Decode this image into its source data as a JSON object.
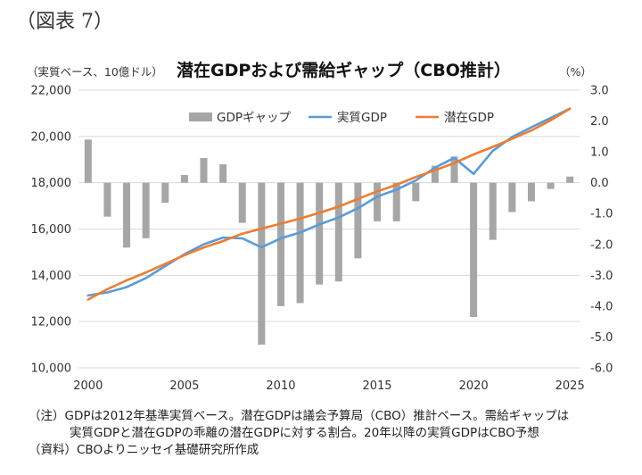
{
  "figure_label": "（図表 7）",
  "chart_data": {
    "type": "bar+line",
    "title": "潜在GDPおよび需給ギャップ（CBO推計）",
    "left_axis_label": "（実質ベース、10億ドル）",
    "right_axis_label": "（%）",
    "left_ylim": [
      10000,
      22000
    ],
    "right_ylim": [
      -6,
      3
    ],
    "left_ticks": [
      "22,000",
      "20,000",
      "18,000",
      "16,000",
      "14,000",
      "12,000",
      "10,000"
    ],
    "right_ticks": [
      "3.0",
      "2.0",
      "1.0",
      "0.0",
      "-1.0",
      "-2.0",
      "-3.0",
      "-4.0",
      "-5.0",
      "-6.0"
    ],
    "x_ticks": [
      "2000",
      "2005",
      "2010",
      "2015",
      "2020",
      "2025"
    ],
    "x": [
      2000,
      2001,
      2002,
      2003,
      2004,
      2005,
      2006,
      2007,
      2008,
      2009,
      2010,
      2011,
      2012,
      2013,
      2014,
      2015,
      2016,
      2017,
      2018,
      2019,
      2020,
      2021,
      2022,
      2023,
      2024,
      2025
    ],
    "legend": [
      "GDPギャップ",
      "実質GDP",
      "潜在GDP"
    ],
    "colors": {
      "gap": "#a6a6a6",
      "real": "#5b9bd5",
      "potential": "#ed7d31"
    },
    "series": [
      {
        "name": "GDPギャップ",
        "axis": "right",
        "type": "bar",
        "values": [
          1.4,
          -1.1,
          -2.1,
          -1.8,
          -0.65,
          0.25,
          0.8,
          0.6,
          -1.3,
          -5.25,
          -4.0,
          -3.9,
          -3.3,
          -3.2,
          -2.45,
          -1.25,
          -1.25,
          -0.6,
          0.55,
          0.85,
          -4.35,
          -1.85,
          -0.95,
          -0.6,
          -0.2,
          0.2
        ]
      },
      {
        "name": "実質GDP",
        "axis": "left",
        "type": "line",
        "values": [
          13130,
          13260,
          13490,
          13880,
          14400,
          14910,
          15340,
          15630,
          15600,
          15210,
          15600,
          15850,
          16200,
          16500,
          16900,
          17400,
          17700,
          18100,
          18650,
          19080,
          18380,
          19380,
          19980,
          20400,
          20800,
          21200
        ]
      },
      {
        "name": "潜在GDP",
        "axis": "left",
        "type": "line",
        "values": [
          12950,
          13400,
          13780,
          14120,
          14490,
          14870,
          15200,
          15480,
          15800,
          16020,
          16230,
          16450,
          16700,
          16970,
          17300,
          17630,
          17910,
          18250,
          18540,
          18850,
          19220,
          19550,
          19900,
          20260,
          20700,
          21200
        ]
      }
    ]
  },
  "notes": [
    "（注）GDPは2012年基準実質ベース。潜在GDPは議会予算局（CBO）推計ベース。需給ギャップは",
    "実質GDPと潜在GDPの乖離の潜在GDPに対する割合。20年以降の実質GDPはCBO予想",
    "（資料）CBOよりニッセイ基礎研究所作成"
  ]
}
